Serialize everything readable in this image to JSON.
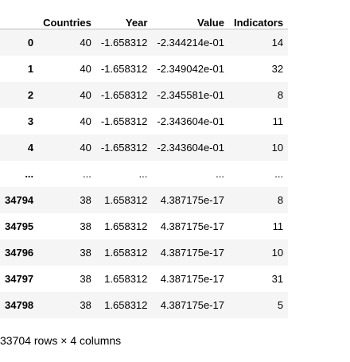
{
  "table": {
    "columns": [
      "",
      "Countries",
      "Year",
      "Value",
      "Indicators"
    ],
    "rows": [
      {
        "index": "0",
        "countries": "40",
        "year": "-1.658312",
        "value": "-2.344214e-01",
        "indicators": "14"
      },
      {
        "index": "1",
        "countries": "40",
        "year": "-1.658312",
        "value": "-2.349042e-01",
        "indicators": "32"
      },
      {
        "index": "2",
        "countries": "40",
        "year": "-1.658312",
        "value": "-2.345581e-01",
        "indicators": "8"
      },
      {
        "index": "3",
        "countries": "40",
        "year": "-1.658312",
        "value": "-2.343604e-01",
        "indicators": "11"
      },
      {
        "index": "4",
        "countries": "40",
        "year": "-1.658312",
        "value": "-2.343604e-01",
        "indicators": "10"
      },
      {
        "index": "...",
        "countries": "...",
        "year": "...",
        "value": "...",
        "indicators": "..."
      },
      {
        "index": "34794",
        "countries": "38",
        "year": "1.658312",
        "value": "4.387175e-17",
        "indicators": "8"
      },
      {
        "index": "34795",
        "countries": "38",
        "year": "1.658312",
        "value": "4.387175e-17",
        "indicators": "11"
      },
      {
        "index": "34796",
        "countries": "38",
        "year": "1.658312",
        "value": "4.387175e-17",
        "indicators": "10"
      },
      {
        "index": "34797",
        "countries": "38",
        "year": "1.658312",
        "value": "4.387175e-17",
        "indicators": "31"
      },
      {
        "index": "34798",
        "countries": "38",
        "year": "1.658312",
        "value": "4.387175e-17",
        "indicators": "5"
      }
    ]
  },
  "caption": "33704 rows × 4 columns"
}
